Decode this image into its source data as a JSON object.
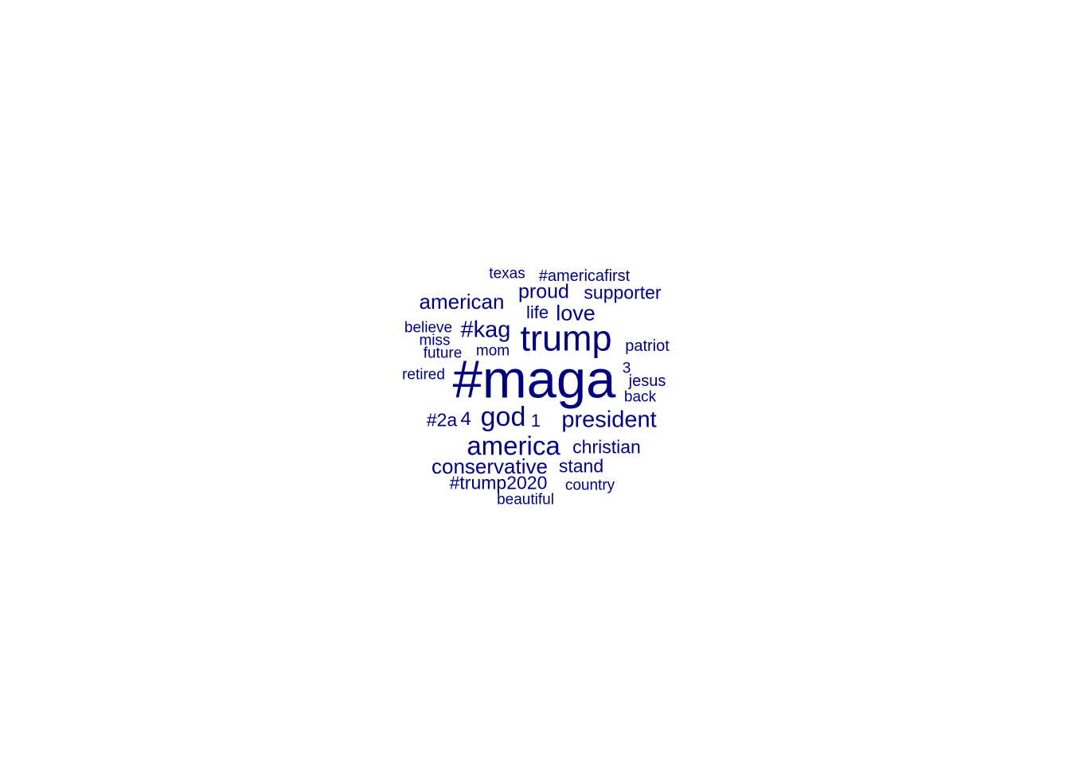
{
  "wordcloud": {
    "color": "#00007f",
    "words": [
      {
        "text": "#maga"
      },
      {
        "text": "trump"
      },
      {
        "text": "america"
      },
      {
        "text": "god"
      },
      {
        "text": "president"
      },
      {
        "text": "#kag"
      },
      {
        "text": "conservative"
      },
      {
        "text": "american"
      },
      {
        "text": "love"
      },
      {
        "text": "proud"
      },
      {
        "text": "supporter"
      },
      {
        "text": "christian"
      },
      {
        "text": "stand"
      },
      {
        "text": "#trump2020"
      },
      {
        "text": "#2a"
      },
      {
        "text": "4"
      },
      {
        "text": "1"
      },
      {
        "text": "life"
      },
      {
        "text": "texas"
      },
      {
        "text": "#americafirst"
      },
      {
        "text": "patriot"
      },
      {
        "text": "believe"
      },
      {
        "text": "miss"
      },
      {
        "text": "future"
      },
      {
        "text": "mom"
      },
      {
        "text": "retired"
      },
      {
        "text": "3"
      },
      {
        "text": "jesus"
      },
      {
        "text": "back"
      },
      {
        "text": "country"
      },
      {
        "text": "beautiful"
      }
    ]
  }
}
